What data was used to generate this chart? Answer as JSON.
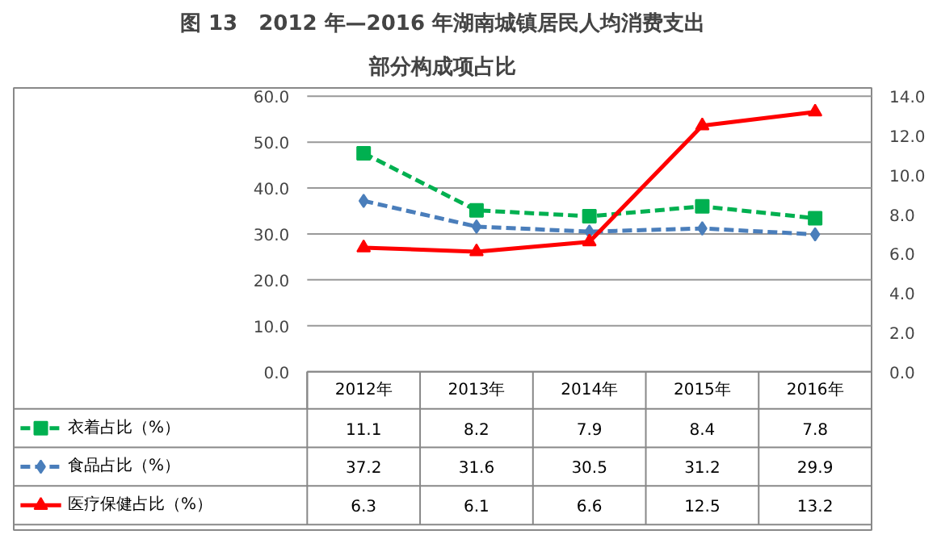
{
  "chart_data": {
    "type": "line",
    "title": "图 13　2012 年—2016 年湖南城镇居民人均消费支出",
    "subtitle": "部分构成项占比",
    "categories": [
      "2012年",
      "2013年",
      "2014年",
      "2015年",
      "2016年"
    ],
    "series": [
      {
        "name": "衣着占比（%）",
        "color": "#00b050",
        "values": [
          11.1,
          8.2,
          7.9,
          8.4,
          7.8
        ],
        "axis": "y2",
        "marker": "square",
        "line_style": "dashed"
      },
      {
        "name": "食品占比（%）",
        "color": "#4a7ebb",
        "values": [
          37.2,
          31.6,
          30.5,
          31.2,
          29.9
        ],
        "marker": "diamond",
        "line_style": "dashed"
      },
      {
        "name": "医疗保健占比（%）",
        "color": "#ff0000",
        "values": [
          6.3,
          6.1,
          6.6,
          12.5,
          13.2
        ],
        "axis": "y2",
        "marker": "triangle",
        "line_style": "solid"
      }
    ],
    "ylim": [
      0,
      60
    ],
    "yticks": [
      {
        "value": 0,
        "label": "0.0"
      },
      {
        "value": 10,
        "label": "10.0"
      },
      {
        "value": 20,
        "label": "20.0"
      },
      {
        "value": 30,
        "label": "30.0"
      },
      {
        "value": 40,
        "label": "40.0"
      },
      {
        "value": 50,
        "label": "50.0"
      },
      {
        "value": 60,
        "label": "60.0"
      }
    ],
    "y2lim": [
      0,
      14
    ],
    "y2ticks": [
      {
        "value": 0,
        "label": "0.0"
      },
      {
        "value": 2,
        "label": "2.0"
      },
      {
        "value": 4,
        "label": "4.0"
      },
      {
        "value": 6,
        "label": "6.0"
      },
      {
        "value": 8,
        "label": "8.0"
      },
      {
        "value": 10,
        "label": "10.0"
      },
      {
        "value": 12,
        "label": "12.0"
      },
      {
        "value": 14,
        "label": "14.0"
      }
    ],
    "grid": "y",
    "legend": "bottom",
    "data_labels": true
  }
}
